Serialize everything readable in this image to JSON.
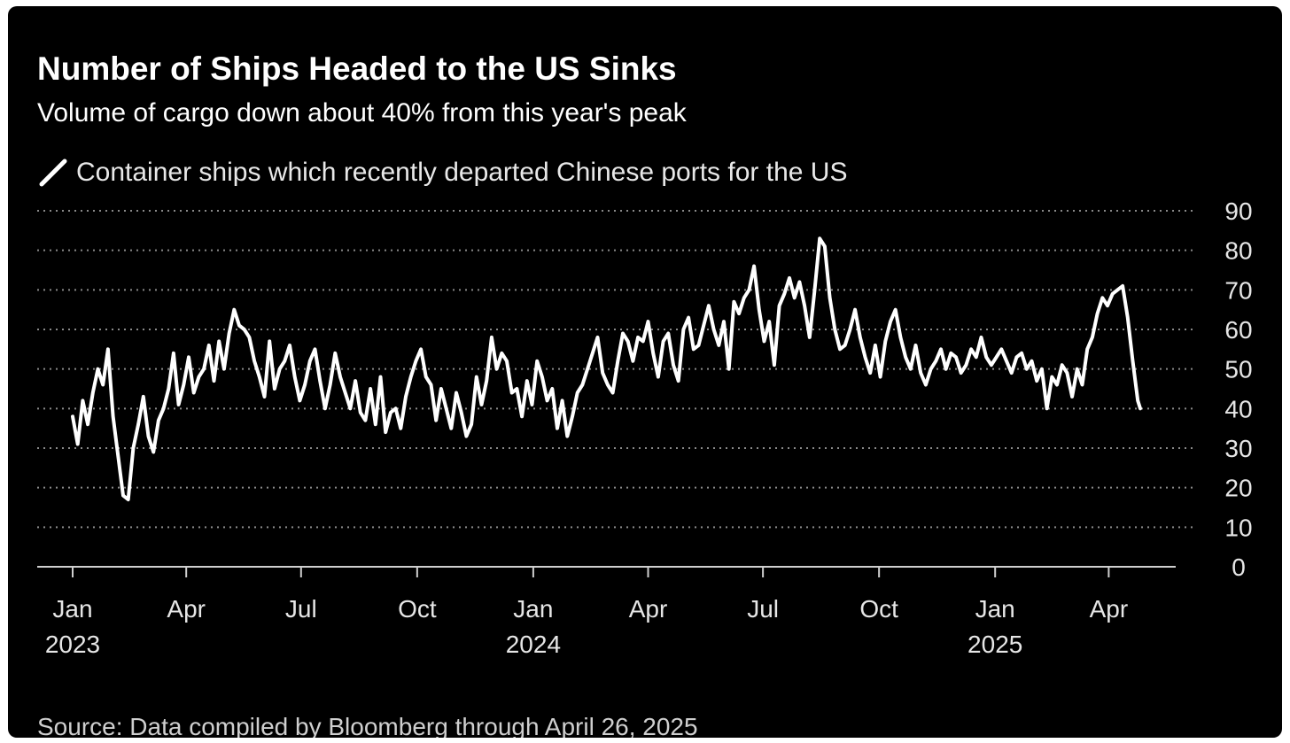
{
  "header": {
    "title": "Number of Ships Headed to the US Sinks",
    "subtitle": "Volume of cargo down about 40% from this year's peak"
  },
  "legend": {
    "label": "Container ships which recently departed Chinese ports for the US"
  },
  "footer": {
    "source": "Source: Data compiled by Bloomberg through April 26, 2025"
  },
  "colors": {
    "background": "#000000",
    "line": "#ffffff",
    "grid": "#8a8a8a",
    "text": "#e6e6e6"
  },
  "chart_data": {
    "type": "line",
    "title": "Number of Ships Headed to the US Sinks",
    "subtitle": "Volume of cargo down about 40% from this year's peak",
    "xlabel": "",
    "ylabel": "",
    "ylim": [
      0,
      90
    ],
    "yticks": [
      0,
      10,
      20,
      30,
      40,
      50,
      60,
      70,
      80,
      90
    ],
    "y_axis_side": "right",
    "grid": "horizontal dotted",
    "legend_position": "top-left",
    "xlim": [
      "2023-01-01",
      "2025-04-26"
    ],
    "xticks": [
      {
        "date": "2023-01-01",
        "label": "Jan",
        "year": "2023"
      },
      {
        "date": "2023-04-01",
        "label": "Apr",
        "year": ""
      },
      {
        "date": "2023-07-01",
        "label": "Jul",
        "year": ""
      },
      {
        "date": "2023-10-01",
        "label": "Oct",
        "year": ""
      },
      {
        "date": "2024-01-01",
        "label": "Jan",
        "year": "2024"
      },
      {
        "date": "2024-04-01",
        "label": "Apr",
        "year": ""
      },
      {
        "date": "2024-07-01",
        "label": "Jul",
        "year": ""
      },
      {
        "date": "2024-10-01",
        "label": "Oct",
        "year": ""
      },
      {
        "date": "2025-01-01",
        "label": "Jan",
        "year": "2025"
      },
      {
        "date": "2025-04-01",
        "label": "Apr",
        "year": ""
      }
    ],
    "series": [
      {
        "name": "Container ships which recently departed Chinese ports for the US",
        "x": [
          "2023-01-01",
          "2023-01-05",
          "2023-01-09",
          "2023-01-13",
          "2023-01-17",
          "2023-01-21",
          "2023-01-25",
          "2023-01-29",
          "2023-02-02",
          "2023-02-06",
          "2023-02-10",
          "2023-02-14",
          "2023-02-18",
          "2023-02-22",
          "2023-02-26",
          "2023-03-02",
          "2023-03-06",
          "2023-03-10",
          "2023-03-14",
          "2023-03-18",
          "2023-03-22",
          "2023-03-26",
          "2023-03-30",
          "2023-04-03",
          "2023-04-07",
          "2023-04-11",
          "2023-04-15",
          "2023-04-19",
          "2023-04-23",
          "2023-04-27",
          "2023-05-01",
          "2023-05-05",
          "2023-05-09",
          "2023-05-13",
          "2023-05-17",
          "2023-05-21",
          "2023-05-25",
          "2023-05-29",
          "2023-06-02",
          "2023-06-06",
          "2023-06-10",
          "2023-06-14",
          "2023-06-18",
          "2023-06-22",
          "2023-06-26",
          "2023-06-30",
          "2023-07-04",
          "2023-07-08",
          "2023-07-12",
          "2023-07-16",
          "2023-07-20",
          "2023-07-24",
          "2023-07-28",
          "2023-08-01",
          "2023-08-05",
          "2023-08-09",
          "2023-08-13",
          "2023-08-17",
          "2023-08-21",
          "2023-08-25",
          "2023-08-29",
          "2023-09-02",
          "2023-09-06",
          "2023-09-10",
          "2023-09-14",
          "2023-09-18",
          "2023-09-22",
          "2023-09-26",
          "2023-09-30",
          "2023-10-04",
          "2023-10-08",
          "2023-10-12",
          "2023-10-16",
          "2023-10-20",
          "2023-10-24",
          "2023-10-28",
          "2023-11-01",
          "2023-11-05",
          "2023-11-09",
          "2023-11-13",
          "2023-11-17",
          "2023-11-21",
          "2023-11-25",
          "2023-11-29",
          "2023-12-03",
          "2023-12-07",
          "2023-12-11",
          "2023-12-15",
          "2023-12-19",
          "2023-12-23",
          "2023-12-27",
          "2023-12-31",
          "2024-01-04",
          "2024-01-08",
          "2024-01-12",
          "2024-01-16",
          "2024-01-20",
          "2024-01-24",
          "2024-01-28",
          "2024-02-01",
          "2024-02-05",
          "2024-02-09",
          "2024-02-13",
          "2024-02-17",
          "2024-02-21",
          "2024-02-25",
          "2024-02-29",
          "2024-03-04",
          "2024-03-08",
          "2024-03-12",
          "2024-03-16",
          "2024-03-20",
          "2024-03-24",
          "2024-03-28",
          "2024-04-01",
          "2024-04-05",
          "2024-04-09",
          "2024-04-13",
          "2024-04-17",
          "2024-04-21",
          "2024-04-25",
          "2024-04-29",
          "2024-05-03",
          "2024-05-07",
          "2024-05-11",
          "2024-05-15",
          "2024-05-19",
          "2024-05-23",
          "2024-05-27",
          "2024-05-31",
          "2024-06-04",
          "2024-06-08",
          "2024-06-12",
          "2024-06-16",
          "2024-06-20",
          "2024-06-24",
          "2024-06-28",
          "2024-07-02",
          "2024-07-06",
          "2024-07-10",
          "2024-07-14",
          "2024-07-18",
          "2024-07-22",
          "2024-07-26",
          "2024-07-30",
          "2024-08-03",
          "2024-08-07",
          "2024-08-11",
          "2024-08-15",
          "2024-08-19",
          "2024-08-23",
          "2024-08-27",
          "2024-08-31",
          "2024-09-04",
          "2024-09-08",
          "2024-09-12",
          "2024-09-16",
          "2024-09-20",
          "2024-09-24",
          "2024-09-28",
          "2024-10-02",
          "2024-10-06",
          "2024-10-10",
          "2024-10-14",
          "2024-10-18",
          "2024-10-22",
          "2024-10-26",
          "2024-10-30",
          "2024-11-03",
          "2024-11-07",
          "2024-11-11",
          "2024-11-15",
          "2024-11-19",
          "2024-11-23",
          "2024-11-27",
          "2024-12-01",
          "2024-12-05",
          "2024-12-09",
          "2024-12-13",
          "2024-12-17",
          "2024-12-21",
          "2024-12-25",
          "2024-12-29",
          "2025-01-02",
          "2025-01-06",
          "2025-01-10",
          "2025-01-14",
          "2025-01-18",
          "2025-01-22",
          "2025-01-26",
          "2025-01-30",
          "2025-02-03",
          "2025-02-07",
          "2025-02-11",
          "2025-02-15",
          "2025-02-19",
          "2025-02-23",
          "2025-02-27",
          "2025-03-03",
          "2025-03-07",
          "2025-03-11",
          "2025-03-15",
          "2025-03-19",
          "2025-03-23",
          "2025-03-27",
          "2025-03-31",
          "2025-04-04",
          "2025-04-08",
          "2025-04-12",
          "2025-04-16",
          "2025-04-20",
          "2025-04-24",
          "2025-04-26"
        ],
        "y": [
          38,
          31,
          42,
          36,
          44,
          50,
          46,
          55,
          38,
          28,
          18,
          17,
          30,
          36,
          43,
          33,
          29,
          37,
          40,
          45,
          54,
          41,
          46,
          53,
          44,
          48,
          50,
          56,
          47,
          57,
          50,
          59,
          65,
          61,
          60,
          58,
          52,
          48,
          43,
          57,
          45,
          50,
          52,
          56,
          48,
          42,
          46,
          52,
          55,
          47,
          40,
          46,
          54,
          48,
          44,
          40,
          47,
          39,
          37,
          45,
          36,
          48,
          34,
          39,
          40,
          35,
          43,
          48,
          52,
          55,
          48,
          46,
          37,
          45,
          40,
          35,
          44,
          39,
          33,
          36,
          48,
          41,
          47,
          58,
          50,
          54,
          52,
          44,
          45,
          38,
          47,
          41,
          52,
          48,
          42,
          45,
          35,
          42,
          33,
          38,
          44,
          46,
          50,
          54,
          58,
          49,
          46,
          44,
          52,
          59,
          57,
          52,
          58,
          57,
          62,
          54,
          48,
          57,
          59,
          51,
          47,
          60,
          63,
          55,
          56,
          61,
          66,
          60,
          56,
          62,
          50,
          67,
          64,
          68,
          70,
          76,
          65,
          57,
          62,
          51,
          66,
          69,
          73,
          68,
          72,
          66,
          58,
          70,
          83,
          81,
          68,
          60,
          55,
          56,
          60,
          65,
          58,
          53,
          49,
          56,
          48,
          57,
          62,
          65,
          58,
          53,
          50,
          56,
          49,
          46,
          50,
          52,
          55,
          50,
          54,
          53,
          49,
          51,
          55,
          53,
          58,
          53,
          51,
          53,
          55,
          52,
          49,
          53,
          54,
          50,
          52,
          47,
          50,
          40,
          48,
          46,
          51,
          49,
          43,
          50,
          46,
          55,
          58,
          64,
          68,
          66,
          69,
          70,
          71,
          63,
          52,
          42,
          40
        ]
      }
    ]
  }
}
